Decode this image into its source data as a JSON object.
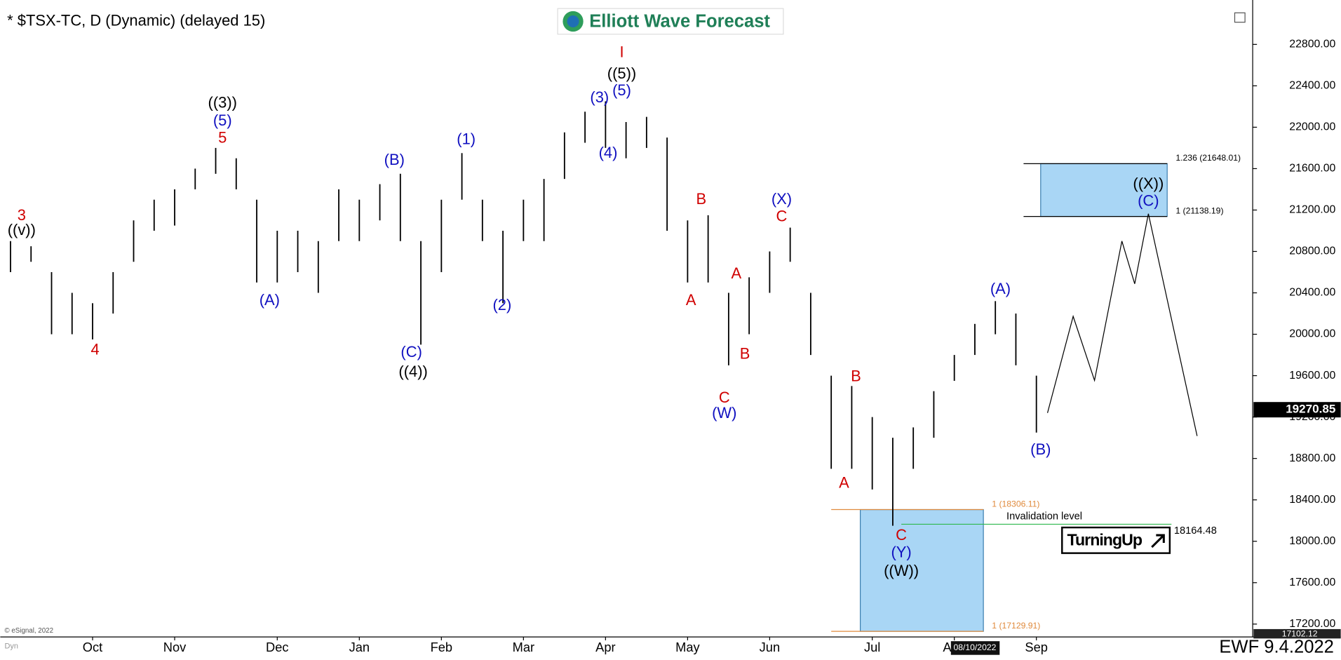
{
  "chart_data": {
    "type": "ohlc",
    "title": "* $TSX-TC, D (Dynamic) (delayed 15)",
    "logo": "Elliott Wave Forecast",
    "footer": "EWF 9.4.2022",
    "copyright": "© eSignal, 2022",
    "mode": "Dyn",
    "badge": "TurningUp",
    "cursor_date": "08/10/2022",
    "cursor_price": {
      "value": 17102.12,
      "label": "17102.12"
    },
    "last_price": {
      "value": 19270.85,
      "label": "19270.85"
    },
    "color": "#000000",
    "categories": [
      null,
      null,
      null,
      null,
      "Oct",
      null,
      null,
      null,
      "Nov",
      null,
      null,
      null,
      null,
      "Dec",
      null,
      null,
      null,
      "Jan",
      null,
      null,
      null,
      "Feb",
      null,
      null,
      null,
      "Mar",
      null,
      null,
      null,
      "Apr",
      null,
      null,
      null,
      "May",
      null,
      null,
      null,
      "Jun",
      null,
      null,
      null,
      null,
      "Jul",
      null,
      null,
      null,
      "Aug",
      null,
      null,
      null,
      "Sep",
      null,
      null,
      null,
      null,
      null,
      null,
      null,
      null,
      null,
      null
    ],
    "high": [
      20900,
      20850,
      20600,
      20400,
      20300,
      20600,
      21100,
      21300,
      21400,
      21600,
      21800,
      21700,
      21300,
      21000,
      21000,
      20900,
      21400,
      21300,
      21450,
      21550,
      20900,
      21300,
      21750,
      21300,
      21000,
      21300,
      21500,
      21950,
      22150,
      22250,
      22050,
      22100,
      21900,
      21100,
      21150,
      20400,
      20550,
      20800,
      21030,
      20400,
      19600,
      19500,
      19200,
      19000,
      19100,
      19450,
      19800,
      20100,
      20320,
      20200,
      19600,
      null,
      null,
      null,
      null,
      null,
      null,
      null,
      null,
      null,
      null
    ],
    "low": [
      20600,
      20700,
      20000,
      20000,
      19950,
      20200,
      20700,
      21000,
      21050,
      21400,
      21550,
      21400,
      20500,
      20500,
      20600,
      20400,
      20900,
      20900,
      21100,
      20900,
      19900,
      20600,
      21300,
      20900,
      20300,
      20900,
      20900,
      21500,
      21850,
      21800,
      21700,
      21800,
      21000,
      20500,
      20500,
      19700,
      20000,
      20400,
      20700,
      19800,
      18700,
      18700,
      18500,
      18150,
      18700,
      19000,
      19550,
      19800,
      20000,
      19700,
      19050,
      null,
      null,
      null,
      null,
      null,
      null,
      null,
      null,
      null,
      null
    ],
    "ylim": [
      17076,
      23163
    ],
    "yticks": [
      {
        "value": 17200,
        "label": "17200.00"
      },
      {
        "value": 17600,
        "label": "17600.00"
      },
      {
        "value": 18000,
        "label": "18000.00"
      },
      {
        "value": 18400,
        "label": "18400.00"
      },
      {
        "value": 18800,
        "label": "18800.00"
      },
      {
        "value": 19200,
        "label": "19200.00"
      },
      {
        "value": 19600,
        "label": "19600.00"
      },
      {
        "value": 20000,
        "label": "20000.00"
      },
      {
        "value": 20400,
        "label": "20400.00"
      },
      {
        "value": 20800,
        "label": "20800.00"
      },
      {
        "value": 21200,
        "label": "21200.00"
      },
      {
        "value": 21600,
        "label": "21600.00"
      },
      {
        "value": 22000,
        "label": "22000.00"
      },
      {
        "value": 22400,
        "label": "22400.00"
      },
      {
        "value": 22800,
        "label": "22800.00"
      }
    ],
    "target_zone": [
      {
        "value": 21648.01,
        "label": "1.236 (21648.01)"
      },
      {
        "value": 21138.19,
        "label": "1 (21138.19)"
      }
    ],
    "support_zone": [
      {
        "value": 18306.11,
        "label": "1 (18306.11)"
      },
      {
        "value": 17129.91,
        "label": "1 (17129.91)"
      }
    ],
    "invalidation": {
      "value": 18164.48,
      "label": "18164.48",
      "text": "Invalidation level"
    },
    "annotations": [
      {
        "text": "3",
        "color": "#d00000"
      },
      {
        "text": "((v))",
        "color": "#000000"
      },
      {
        "text": "4",
        "color": "#d00000"
      },
      {
        "text": "(A)",
        "color": "#1010c0"
      },
      {
        "text": "((3))",
        "color": "#000000"
      },
      {
        "text": "(5)",
        "color": "#1010c0"
      },
      {
        "text": "5",
        "color": "#d00000"
      },
      {
        "text": "(B)",
        "color": "#1010c0"
      },
      {
        "text": "(C)",
        "color": "#1010c0"
      },
      {
        "text": "((4))",
        "color": "#000000"
      },
      {
        "text": "(1)",
        "color": "#1010c0"
      },
      {
        "text": "(2)",
        "color": "#1010c0"
      },
      {
        "text": "(3)",
        "color": "#1010c0"
      },
      {
        "text": "(5)",
        "color": "#1010c0"
      },
      {
        "text": "((5))",
        "color": "#000000"
      },
      {
        "text": "I",
        "color": "#d00000"
      },
      {
        "text": "(4)",
        "color": "#1010c0"
      },
      {
        "text": "B",
        "color": "#d00000"
      },
      {
        "text": "A",
        "color": "#d00000"
      },
      {
        "text": "A",
        "color": "#d00000"
      },
      {
        "text": "B",
        "color": "#d00000"
      },
      {
        "text": "C",
        "color": "#d00000"
      },
      {
        "text": "(W)",
        "color": "#1010c0"
      },
      {
        "text": "(X)",
        "color": "#1010c0"
      },
      {
        "text": "C",
        "color": "#d00000"
      },
      {
        "text": "B",
        "color": "#d00000"
      },
      {
        "text": "A",
        "color": "#d00000"
      },
      {
        "text": "C",
        "color": "#d00000"
      },
      {
        "text": "(Y)",
        "color": "#1010c0"
      },
      {
        "text": "((W))",
        "color": "#000000"
      },
      {
        "text": "(A)",
        "color": "#1010c0"
      },
      {
        "text": "(B)",
        "color": "#1010c0"
      },
      {
        "text": "((X))",
        "color": "#000000"
      },
      {
        "text": "(C)",
        "color": "#1010c0"
      }
    ]
  }
}
